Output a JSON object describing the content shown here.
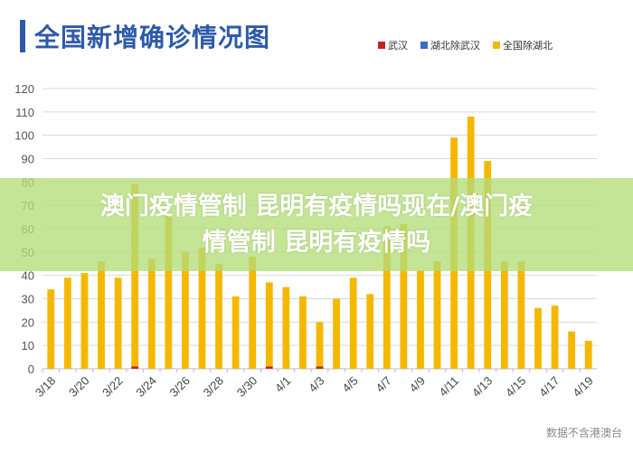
{
  "chart_data": {
    "type": "bar",
    "title": "全国新增确诊情况图",
    "xlabel": "",
    "ylabel": "",
    "ylim": [
      0,
      120
    ],
    "yticks": [
      0,
      10,
      20,
      30,
      40,
      50,
      60,
      70,
      80,
      90,
      100,
      110,
      120
    ],
    "grid": true,
    "legend_position": "top-right",
    "categories": [
      "3/18",
      "3/19",
      "3/20",
      "3/21",
      "3/22",
      "3/23",
      "3/24",
      "3/25",
      "3/26",
      "3/27",
      "3/28",
      "3/29",
      "3/30",
      "3/31",
      "4/1",
      "4/2",
      "4/3",
      "4/4",
      "4/5",
      "4/6",
      "4/7",
      "4/8",
      "4/9",
      "4/10",
      "4/11",
      "4/12",
      "4/13",
      "4/14",
      "4/15",
      "4/16",
      "4/17",
      "4/18",
      "4/19"
    ],
    "xtick_labels": [
      "3/18",
      "3/20",
      "3/22",
      "3/24",
      "3/26",
      "3/28",
      "3/30",
      "4/1",
      "4/3",
      "4/5",
      "4/7",
      "4/9",
      "4/11",
      "4/13",
      "4/15",
      "4/17",
      "4/19"
    ],
    "series": [
      {
        "name": "武汉",
        "color": "#c0231e",
        "values": [
          0,
          0,
          0,
          0,
          0,
          1,
          0,
          0,
          0,
          0,
          0,
          0,
          0,
          1,
          0,
          0,
          1,
          0,
          0,
          0,
          0,
          0,
          0,
          0,
          0,
          0,
          0,
          0,
          0,
          0,
          0,
          0,
          0
        ]
      },
      {
        "name": "湖北除武汉",
        "color": "#3b6cc0",
        "values": [
          0,
          0,
          0,
          0,
          0,
          0,
          0,
          0,
          0,
          0,
          0,
          0,
          0,
          0,
          0,
          0,
          0,
          0,
          0,
          0,
          0,
          0,
          0,
          0,
          0,
          0,
          0,
          0,
          0,
          0,
          0,
          0,
          0
        ]
      },
      {
        "name": "全国除湖北",
        "color": "#f5b800",
        "values": [
          34,
          39,
          41,
          46,
          39,
          78,
          47,
          66,
          50,
          52,
          45,
          31,
          48,
          36,
          35,
          31,
          19,
          30,
          39,
          32,
          61,
          62,
          42,
          46,
          99,
          108,
          89,
          46,
          46,
          26,
          27,
          16,
          12
        ]
      }
    ]
  },
  "overlay": {
    "headline_line1": "澳门疫情管制 昆明有疫情吗现在/澳门疫",
    "headline_line2": "情管制 昆明有疫情吗"
  },
  "watermark": "数据不含港澳台"
}
